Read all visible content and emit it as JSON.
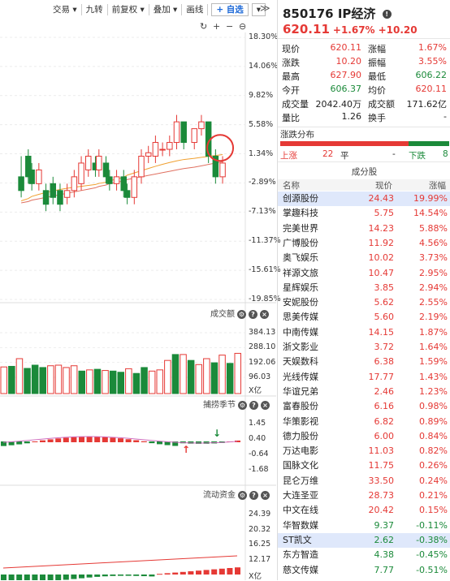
{
  "toolbar": {
    "items": [
      "交易 ▾",
      "九转",
      "前复权 ▾",
      "叠加 ▾",
      "画线"
    ],
    "add_label": "+ 自选",
    "dropdown_glyph": "▾",
    "more_glyph": "≫"
  },
  "colors": {
    "up": "#e53935",
    "down": "#1b8a3a",
    "accent": "#1e6ad8"
  },
  "kline": {
    "top_icons": [
      "↻",
      "+",
      "−",
      "⊖"
    ],
    "y_ticks": [
      "18.30%",
      "14.06%",
      "9.82%",
      "5.58%",
      "1.34%",
      "-2.89%",
      "-7.13%",
      "-11.37%",
      "-15.61%",
      "-19.85%"
    ],
    "candles": [
      [
        6,
        -2,
        -4,
        -5,
        1
      ],
      [
        8,
        1,
        -2,
        -3,
        2
      ],
      [
        9,
        -1,
        -3,
        -4,
        0
      ],
      [
        11,
        -3,
        -1,
        -4,
        0
      ],
      [
        13,
        -4,
        -6,
        -7,
        -3
      ],
      [
        15,
        -3,
        -5,
        -6,
        -2
      ],
      [
        17,
        -4,
        -6,
        -7,
        -3
      ],
      [
        19,
        -5,
        -4,
        -6,
        -3
      ],
      [
        21,
        -4,
        -2,
        -5,
        -1
      ],
      [
        23,
        -3,
        0,
        -4,
        1
      ],
      [
        25,
        -1,
        1,
        -2,
        2
      ],
      [
        27,
        0,
        -1,
        -2,
        1
      ],
      [
        28,
        -1,
        1,
        -2,
        2
      ],
      [
        30,
        0,
        -2,
        -3,
        1
      ],
      [
        31,
        -2,
        -3,
        -4,
        -1
      ],
      [
        33,
        -3,
        -2,
        -4,
        -1
      ],
      [
        35,
        -2,
        -4,
        -5,
        -1
      ],
      [
        36,
        -4,
        -5,
        -6,
        -3
      ],
      [
        38,
        -5,
        -2,
        -6,
        -1
      ],
      [
        40,
        -2,
        1,
        -3,
        2
      ],
      [
        42,
        1,
        1.5,
        0,
        2.5
      ],
      [
        44,
        1,
        3,
        0,
        4
      ],
      [
        46,
        2,
        2,
        1,
        3
      ],
      [
        48,
        2,
        3,
        1,
        4
      ],
      [
        50,
        3,
        6,
        2,
        7
      ],
      [
        52,
        6,
        3,
        2,
        6
      ],
      [
        55,
        3,
        5,
        2,
        5
      ],
      [
        57,
        5,
        6,
        4,
        7
      ],
      [
        59,
        6,
        1,
        0,
        6
      ],
      [
        61,
        1,
        -2,
        -3,
        2
      ],
      [
        63,
        -2,
        0,
        -3,
        1
      ]
    ],
    "annotation": "circle on last candle"
  },
  "volume": {
    "title": "成交额",
    "y_ticks": [
      "384.13",
      "288.10",
      "192.06",
      "96.03"
    ],
    "unit": "X亿",
    "bars": [
      [
        1,
        90,
        1
      ],
      [
        2,
        92,
        0
      ],
      [
        3,
        118,
        1
      ],
      [
        4,
        85,
        0
      ],
      [
        5,
        96,
        0
      ],
      [
        6,
        88,
        0
      ],
      [
        7,
        94,
        1
      ],
      [
        8,
        96,
        1
      ],
      [
        9,
        88,
        1
      ],
      [
        10,
        94,
        1
      ],
      [
        11,
        76,
        0
      ],
      [
        12,
        80,
        1
      ],
      [
        13,
        82,
        0
      ],
      [
        14,
        78,
        1
      ],
      [
        15,
        76,
        0
      ],
      [
        16,
        72,
        0
      ],
      [
        17,
        84,
        1
      ],
      [
        18,
        68,
        0
      ],
      [
        19,
        88,
        0
      ],
      [
        20,
        76,
        1
      ],
      [
        21,
        80,
        1
      ],
      [
        22,
        112,
        1
      ],
      [
        23,
        132,
        0
      ],
      [
        24,
        132,
        1
      ],
      [
        25,
        112,
        0
      ],
      [
        26,
        98,
        1
      ],
      [
        27,
        118,
        1
      ],
      [
        28,
        104,
        0
      ],
      [
        29,
        130,
        1
      ],
      [
        30,
        102,
        0
      ],
      [
        31,
        136,
        1
      ]
    ]
  },
  "indicator1": {
    "title": "捕捞季节",
    "y_ticks": [
      "1.45",
      "0.40",
      "-0.64",
      "-1.68"
    ]
  },
  "indicator2": {
    "title": "流动资金",
    "y_ticks": [
      "24.39",
      "20.32",
      "16.25",
      "12.17",
      "X亿"
    ]
  },
  "quote": {
    "title": "850176 IP经济",
    "title_icon": "alert-icon",
    "price": "620.11",
    "change_pct": "+1.67%",
    "change": "+10.20",
    "fields": [
      {
        "k1": "现价",
        "v1": "620.11",
        "k2": "涨幅",
        "v2": "1.67%"
      },
      {
        "k1": "涨跌",
        "v1": "10.20",
        "k2": "振幅",
        "v2": "3.55%"
      },
      {
        "k1": "最高",
        "v1": "627.90",
        "k2": "最低",
        "v2": "606.22"
      },
      {
        "k1": "今开",
        "v1": "606.37",
        "k2": "均价",
        "v2": "620.11"
      },
      {
        "k1": "成交量",
        "v1": "2042.40万",
        "k2": "成交额",
        "v2": "171.62亿"
      },
      {
        "k1": "量比",
        "v1": "1.26",
        "k2": "换手",
        "v2": "-"
      }
    ],
    "dist_title": "涨跌分布",
    "up_label": "上涨",
    "up_count": "22",
    "flat_label": "平",
    "flat_count": "-",
    "down_label": "下跌",
    "down_count": "8"
  },
  "constituents": {
    "title": "成分股",
    "headers": [
      "名称",
      "现价",
      "涨幅"
    ],
    "rows": [
      {
        "name": "创源股份",
        "price": "24.43",
        "pct": "19.99%"
      },
      {
        "name": "掌趣科技",
        "price": "5.75",
        "pct": "14.54%"
      },
      {
        "name": "完美世界",
        "price": "14.23",
        "pct": "5.88%"
      },
      {
        "name": "广博股份",
        "price": "11.92",
        "pct": "4.56%"
      },
      {
        "name": "奥飞娱乐",
        "price": "10.02",
        "pct": "3.73%"
      },
      {
        "name": "祥源文旅",
        "price": "10.47",
        "pct": "2.95%"
      },
      {
        "name": "星辉娱乐",
        "price": "3.85",
        "pct": "2.94%"
      },
      {
        "name": "安妮股份",
        "price": "5.62",
        "pct": "2.55%"
      },
      {
        "name": "思美传媒",
        "price": "5.60",
        "pct": "2.19%"
      },
      {
        "name": "中南传媒",
        "price": "14.15",
        "pct": "1.87%"
      },
      {
        "name": "浙文影业",
        "price": "3.72",
        "pct": "1.64%"
      },
      {
        "name": "天娱数科",
        "price": "6.38",
        "pct": "1.59%"
      },
      {
        "name": "光线传媒",
        "price": "17.77",
        "pct": "1.43%"
      },
      {
        "name": "华谊兄弟",
        "price": "2.46",
        "pct": "1.23%"
      },
      {
        "name": "富春股份",
        "price": "6.16",
        "pct": "0.98%"
      },
      {
        "name": "华策影视",
        "price": "6.82",
        "pct": "0.89%"
      },
      {
        "name": "德力股份",
        "price": "6.00",
        "pct": "0.84%"
      },
      {
        "name": "万达电影",
        "price": "11.03",
        "pct": "0.82%"
      },
      {
        "name": "国脉文化",
        "price": "11.75",
        "pct": "0.26%"
      },
      {
        "name": "昆仑万维",
        "price": "33.50",
        "pct": "0.24%"
      },
      {
        "name": "大连圣亚",
        "price": "28.73",
        "pct": "0.21%"
      },
      {
        "name": "中文在线",
        "price": "20.42",
        "pct": "0.15%"
      },
      {
        "name": "华智数媒",
        "price": "9.37",
        "pct": "-0.11%"
      },
      {
        "name": "ST凯文",
        "price": "2.62",
        "pct": "-0.38%"
      },
      {
        "name": "东方智造",
        "price": "4.38",
        "pct": "-0.45%"
      },
      {
        "name": "慈文传媒",
        "price": "7.77",
        "pct": "-0.51%"
      }
    ]
  }
}
